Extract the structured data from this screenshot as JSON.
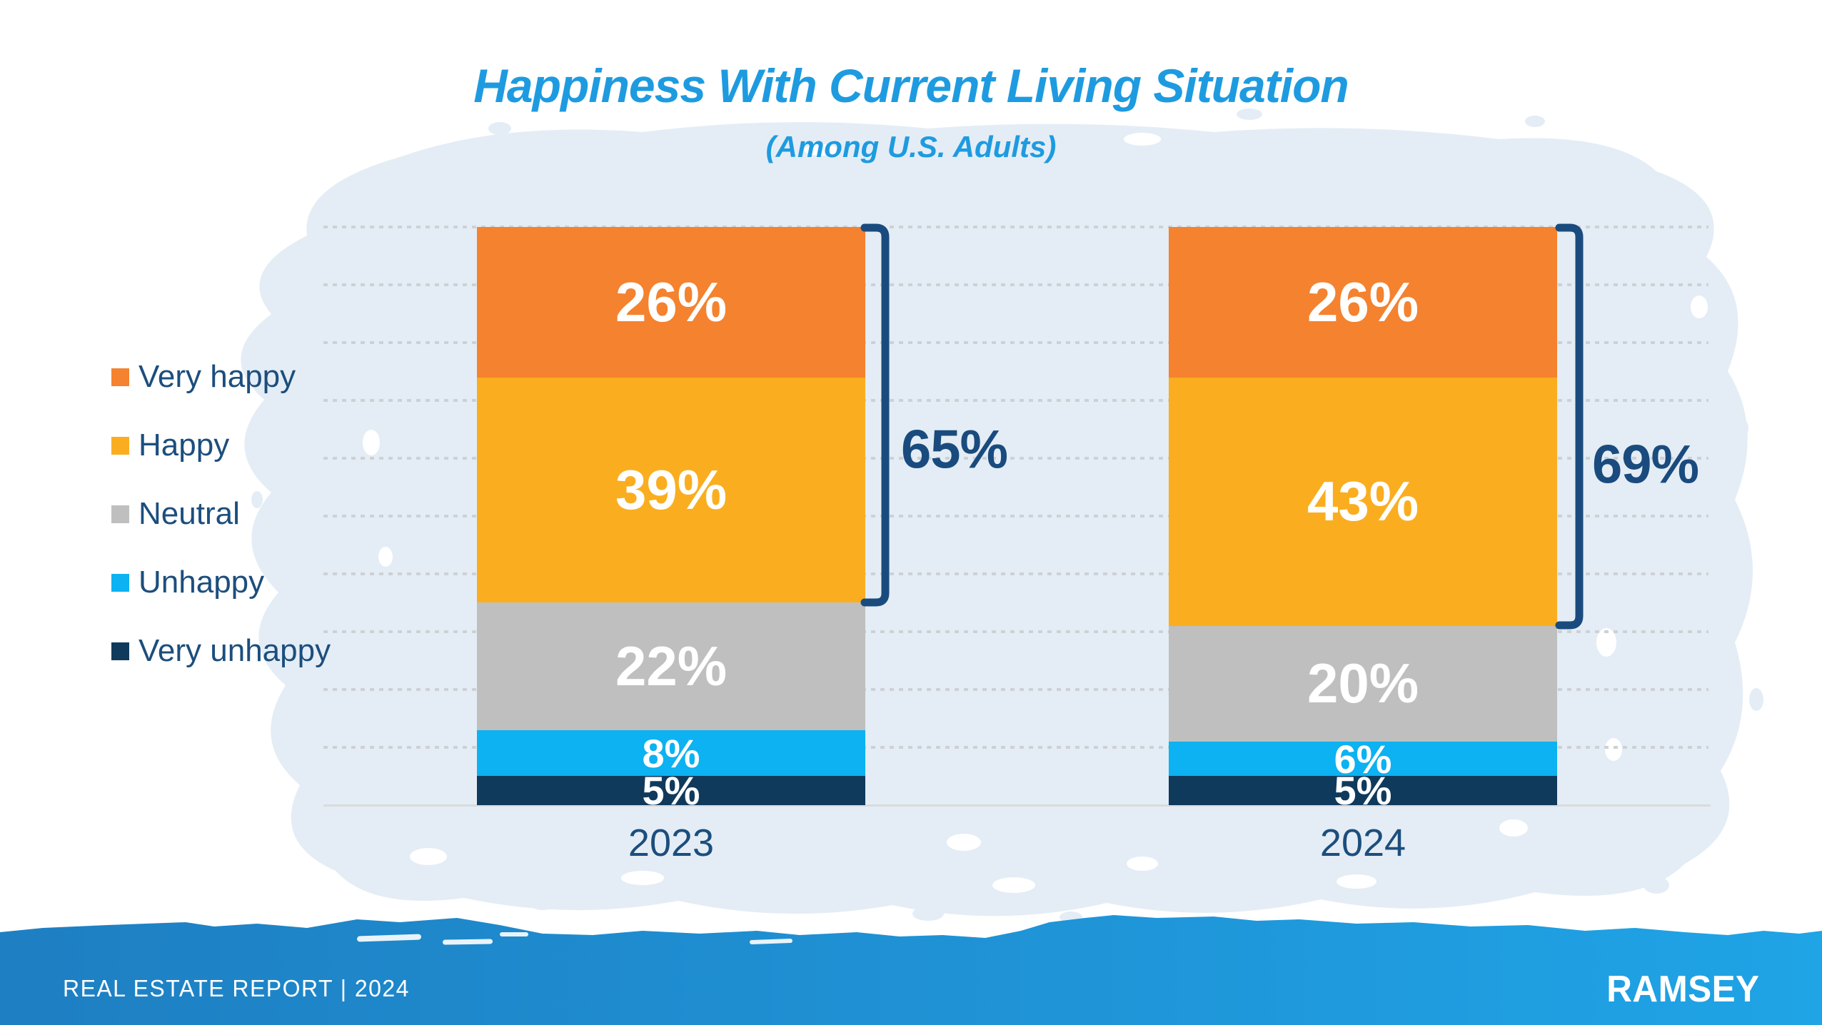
{
  "title": "Happiness With Current Living Situation",
  "subtitle": "(Among U.S. Adults)",
  "colors": {
    "title_blue": "#1E9BE0",
    "navy_text": "#1C4E7D",
    "bracket_navy": "#1A4B7E",
    "gridline_gray": "#CDD1D5",
    "baseline_gray": "#D9DBDD",
    "splash_blue": "#E4EDF5",
    "footer_gradient_start": "#1E7FC2",
    "footer_gradient_end": "#1FA4E6"
  },
  "legend": {
    "items": [
      {
        "label": "Very happy",
        "color": "#F4822F"
      },
      {
        "label": "Happy",
        "color": "#FAAE1F"
      },
      {
        "label": "Neutral",
        "color": "#BFBFBF"
      },
      {
        "label": "Unhappy",
        "color": "#0CB2F1"
      },
      {
        "label": "Very unhappy",
        "color": "#0F3A5C"
      }
    ]
  },
  "chart_data": {
    "type": "bar",
    "stacked": true,
    "unit": "percent",
    "title": "Happiness With Current Living Situation",
    "subtitle": "(Among U.S. Adults)",
    "categories": [
      "2023",
      "2024"
    ],
    "series": [
      {
        "name": "Very happy",
        "color": "#F4822F",
        "values": [
          26,
          26
        ]
      },
      {
        "name": "Happy",
        "color": "#FAAE1F",
        "values": [
          39,
          43
        ]
      },
      {
        "name": "Neutral",
        "color": "#BFBFBF",
        "values": [
          22,
          20
        ]
      },
      {
        "name": "Unhappy",
        "color": "#0CB2F1",
        "values": [
          8,
          6
        ]
      },
      {
        "name": "Very unhappy",
        "color": "#0F3A5C",
        "values": [
          5,
          5
        ]
      }
    ],
    "annotations": [
      {
        "category": "2023",
        "label": "65%",
        "meaning": "Very happy + Happy"
      },
      {
        "category": "2024",
        "label": "69%",
        "meaning": "Very happy + Happy"
      }
    ],
    "ylim": [
      0,
      100
    ],
    "gridlines": "dotted horizontal every 10%",
    "legend_position": "left"
  },
  "footer": {
    "left_text": "REAL ESTATE REPORT | 2024",
    "brand": "RAMSEY"
  }
}
